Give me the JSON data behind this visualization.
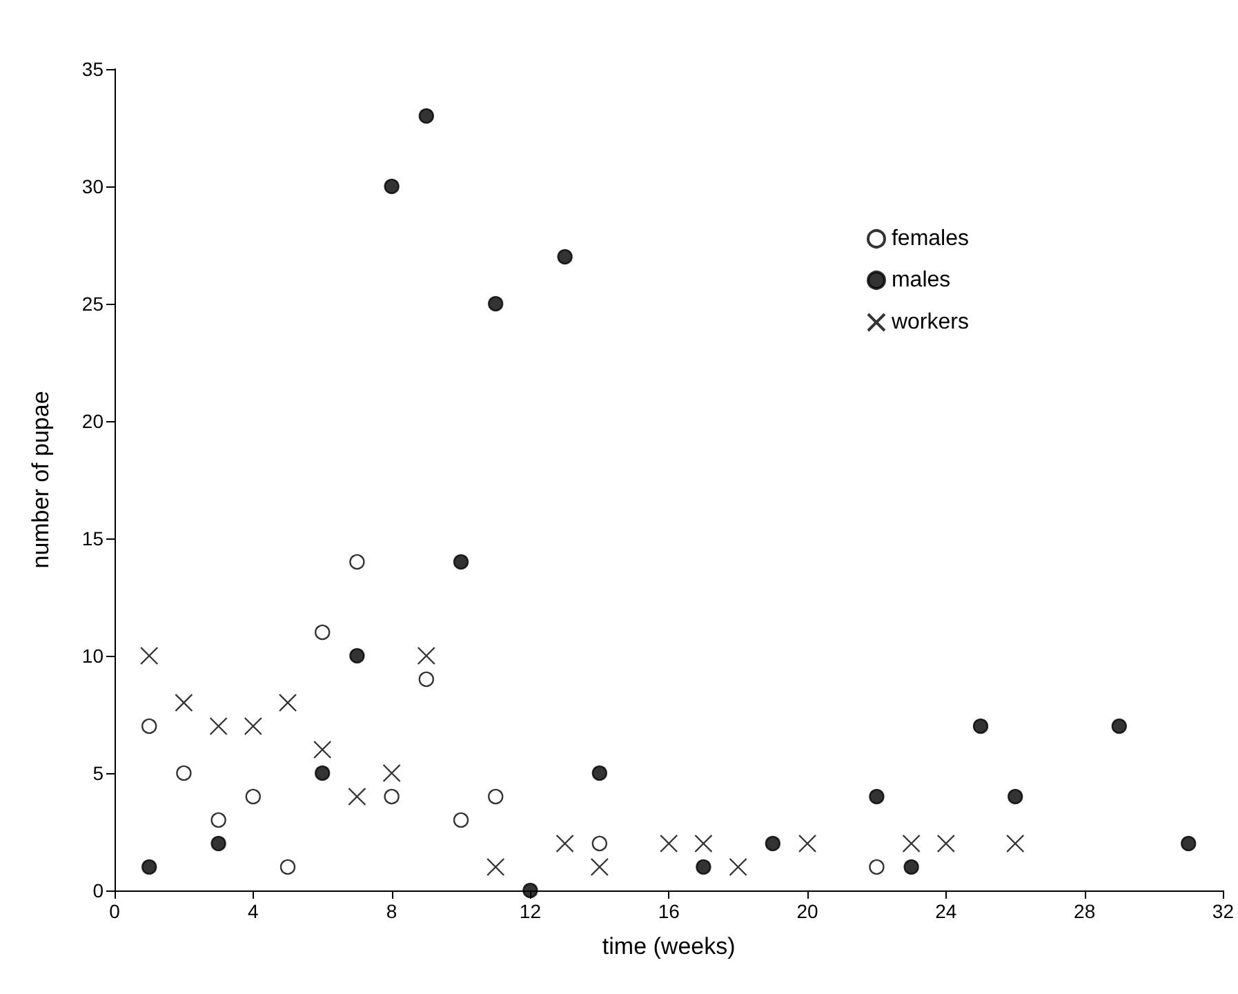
{
  "chart_data": {
    "type": "scatter",
    "xlabel": "time (weeks)",
    "ylabel": "number of pupae",
    "xlim": [
      0,
      32
    ],
    "xticks": [
      0,
      4,
      8,
      12,
      16,
      20,
      24,
      28,
      32
    ],
    "ylim": [
      0,
      35
    ],
    "yticks": [
      0,
      5,
      10,
      15,
      20,
      25,
      30,
      35
    ],
    "grid": false,
    "legend": "top right",
    "series": [
      {
        "name": "females",
        "color": "#ffffff",
        "marker": "circle",
        "x": [
          1,
          2,
          3,
          4,
          5,
          6,
          7,
          8,
          9,
          10,
          11,
          14,
          22
        ],
        "values": [
          7,
          5,
          3,
          4,
          1,
          11,
          14,
          4,
          9,
          3,
          4,
          2,
          1
        ]
      },
      {
        "name": "males",
        "color": "#000000",
        "marker": "circle",
        "x": [
          1,
          3,
          6,
          7,
          8,
          9,
          10,
          11,
          12,
          13,
          14,
          17,
          19,
          22,
          23,
          25,
          26,
          29,
          31
        ],
        "values": [
          1,
          2,
          5,
          10,
          30,
          33,
          14,
          25,
          0,
          27,
          5,
          1,
          2,
          4,
          1,
          7,
          4,
          7,
          2
        ]
      },
      {
        "name": "workers",
        "color": "#000000",
        "marker": "cross",
        "x": [
          1,
          2,
          3,
          4,
          5,
          6,
          7,
          8,
          9,
          11,
          13,
          14,
          16,
          17,
          18,
          20,
          23,
          24,
          26
        ],
        "values": [
          10,
          8,
          7,
          7,
          8,
          6,
          4,
          5,
          10,
          1,
          2,
          1,
          2,
          2,
          1,
          2,
          2,
          2,
          2
        ]
      }
    ]
  }
}
